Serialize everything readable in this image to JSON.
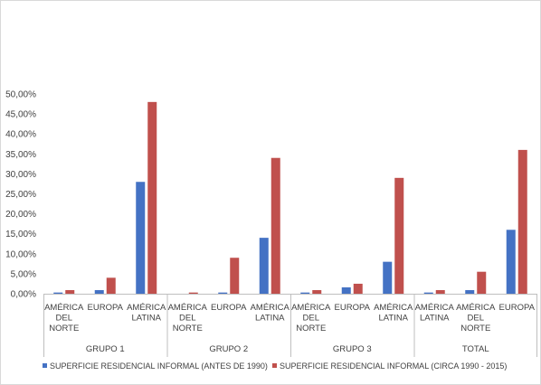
{
  "chart_data": {
    "type": "bar",
    "title": "",
    "xlabel": "",
    "ylabel": "",
    "ylim": [
      0,
      0.5
    ],
    "y_tick_step": 0.05,
    "y_tick_labels": [
      "0,00%",
      "5,00%",
      "10,00%",
      "15,00%",
      "20,00%",
      "25,00%",
      "30,00%",
      "35,00%",
      "40,00%",
      "45,00%",
      "50,00%"
    ],
    "grid": false,
    "legend_position": "bottom",
    "groups": [
      {
        "label": "GRUPO 1",
        "categories": [
          [
            "AMÉRICA",
            "DEL",
            "NORTE"
          ],
          [
            "EUROPA"
          ],
          [
            "AMÉRICA",
            "LATINA"
          ]
        ]
      },
      {
        "label": "GRUPO 2",
        "categories": [
          [
            "AMÉRICA",
            "DEL",
            "NORTE"
          ],
          [
            "EUROPA"
          ],
          [
            "AMÉRICA",
            "LATINA"
          ]
        ]
      },
      {
        "label": "GRUPO 3",
        "categories": [
          [
            "AMÉRICA",
            "DEL",
            "NORTE"
          ],
          [
            "EUROPA"
          ],
          [
            "AMÉRICA",
            "LATINA"
          ]
        ]
      },
      {
        "label": "TOTAL",
        "categories": [
          [
            "AMÉRICA",
            "LATINA"
          ],
          [
            "AMÉRICA",
            "DEL",
            "NORTE"
          ],
          [
            "EUROPA"
          ]
        ]
      }
    ],
    "series": [
      {
        "name": "SUPERFICIE RESIDENCIAL INFORMAL (ANTES DE 1990)",
        "color": "#4472c4",
        "values": [
          0.003,
          0.009,
          0.28,
          0.0,
          0.003,
          0.14,
          0.003,
          0.016,
          0.08,
          0.003,
          0.009,
          0.16
        ]
      },
      {
        "name": "SUPERFICIE RESIDENCIAL INFORMAL (CIRCA 1990 - 2015)",
        "color": "#c0504d",
        "values": [
          0.009,
          0.04,
          0.48,
          0.003,
          0.09,
          0.34,
          0.009,
          0.025,
          0.29,
          0.009,
          0.055,
          0.36
        ]
      }
    ]
  }
}
